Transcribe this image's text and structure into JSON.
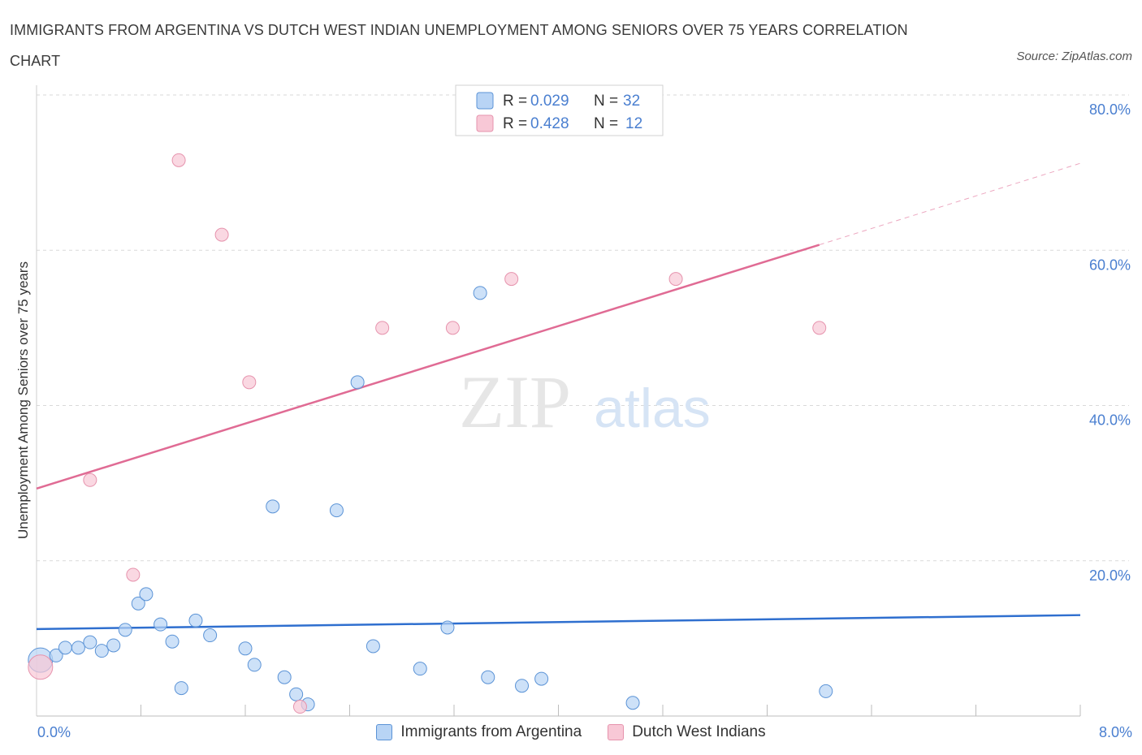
{
  "title": "IMMIGRANTS FROM ARGENTINA VS DUTCH WEST INDIAN UNEMPLOYMENT AMONG SENIORS OVER 75 YEARS CORRELATION CHART",
  "source": "Source: ZipAtlas.com",
  "watermark": {
    "zip": "ZIP",
    "atlas": "atlas"
  },
  "colors": {
    "blue_fill": "#b8d4f5",
    "blue_stroke": "#5b93d6",
    "blue_line": "#2f6fcf",
    "pink_fill": "#f8c8d6",
    "pink_stroke": "#e693ad",
    "pink_line": "#e06b94",
    "axis_text": "#4a7fd0",
    "grid": "#d9d9d9"
  },
  "legend_top": [
    {
      "r_label": "R =",
      "r_value": "0.029",
      "n_label": "N =",
      "n_value": "32"
    },
    {
      "r_label": "R =",
      "r_value": "0.428",
      "n_label": "N =",
      "n_value": "12"
    }
  ],
  "chart_data": {
    "type": "scatter",
    "xlabel": "",
    "ylabel": "Unemployment Among Seniors over 75 years",
    "xlim": [
      0,
      8
    ],
    "ylim": [
      0,
      80
    ],
    "x_tick_labels": [
      "0.0%",
      "8.0%"
    ],
    "y_ticks": [
      20,
      40,
      60,
      80
    ],
    "y_tick_labels": [
      "20.0%",
      "40.0%",
      "60.0%",
      "80.0%"
    ],
    "series": [
      {
        "name": "Immigrants from Argentina",
        "color": "#5b93d6",
        "points": [
          {
            "x": 0.03,
            "y": 7.2,
            "big": true
          },
          {
            "x": 0.15,
            "y": 7.8
          },
          {
            "x": 0.22,
            "y": 8.8
          },
          {
            "x": 0.32,
            "y": 8.8
          },
          {
            "x": 0.41,
            "y": 9.5
          },
          {
            "x": 0.5,
            "y": 8.4
          },
          {
            "x": 0.59,
            "y": 9.1
          },
          {
            "x": 0.68,
            "y": 11.1
          },
          {
            "x": 0.78,
            "y": 14.5
          },
          {
            "x": 0.84,
            "y": 15.7
          },
          {
            "x": 0.95,
            "y": 11.8
          },
          {
            "x": 1.04,
            "y": 9.6
          },
          {
            "x": 1.11,
            "y": 3.6
          },
          {
            "x": 1.22,
            "y": 12.3
          },
          {
            "x": 1.33,
            "y": 10.4
          },
          {
            "x": 1.6,
            "y": 8.7
          },
          {
            "x": 1.67,
            "y": 6.6
          },
          {
            "x": 1.81,
            "y": 27.0
          },
          {
            "x": 1.9,
            "y": 5.0
          },
          {
            "x": 1.99,
            "y": 2.8
          },
          {
            "x": 2.08,
            "y": 1.5
          },
          {
            "x": 2.3,
            "y": 26.5
          },
          {
            "x": 2.46,
            "y": 43.0
          },
          {
            "x": 2.58,
            "y": 9.0
          },
          {
            "x": 2.94,
            "y": 6.1
          },
          {
            "x": 3.15,
            "y": 11.4
          },
          {
            "x": 3.4,
            "y": 54.5
          },
          {
            "x": 3.46,
            "y": 5.0
          },
          {
            "x": 3.72,
            "y": 3.9
          },
          {
            "x": 3.87,
            "y": 4.8
          },
          {
            "x": 4.57,
            "y": 1.7
          },
          {
            "x": 6.05,
            "y": 3.2
          }
        ],
        "trend": {
          "x0": 0,
          "y0": 11.2,
          "x1": 8,
          "y1": 13.0
        }
      },
      {
        "name": "Dutch West Indians",
        "color": "#e693ad",
        "points": [
          {
            "x": 0.03,
            "y": 6.3,
            "big": true
          },
          {
            "x": 0.41,
            "y": 30.4
          },
          {
            "x": 0.74,
            "y": 18.2
          },
          {
            "x": 1.09,
            "y": 71.6
          },
          {
            "x": 1.42,
            "y": 62.0
          },
          {
            "x": 1.63,
            "y": 43.0
          },
          {
            "x": 2.02,
            "y": 1.2
          },
          {
            "x": 2.65,
            "y": 50.0
          },
          {
            "x": 3.19,
            "y": 50.0
          },
          {
            "x": 3.64,
            "y": 56.3
          },
          {
            "x": 4.9,
            "y": 56.3
          },
          {
            "x": 6.0,
            "y": 50.0
          }
        ],
        "trend": {
          "x0": 0,
          "y0": 29.3,
          "x1": 6.0,
          "y1": 60.7,
          "x_ext": 8,
          "y_ext": 71.2
        }
      }
    ]
  }
}
